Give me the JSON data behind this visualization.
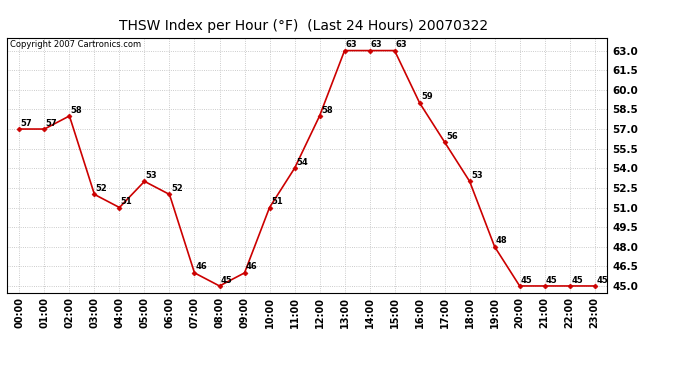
{
  "title": "THSW Index per Hour (°F)  (Last 24 Hours) 20070322",
  "copyright": "Copyright 2007 Cartronics.com",
  "hours": [
    "00:00",
    "01:00",
    "02:00",
    "03:00",
    "04:00",
    "05:00",
    "06:00",
    "07:00",
    "08:00",
    "09:00",
    "10:00",
    "11:00",
    "12:00",
    "13:00",
    "14:00",
    "15:00",
    "16:00",
    "17:00",
    "18:00",
    "19:00",
    "20:00",
    "21:00",
    "22:00",
    "23:00"
  ],
  "values": [
    57,
    57,
    58,
    52,
    51,
    53,
    52,
    46,
    45,
    46,
    51,
    54,
    58,
    63,
    63,
    63,
    59,
    56,
    53,
    48,
    45,
    45,
    45,
    45
  ],
  "line_color": "#cc0000",
  "marker_color": "#cc0000",
  "bg_color": "#ffffff",
  "plot_bg_color": "#ffffff",
  "grid_color": "#bbbbbb",
  "ylim_min": 45.0,
  "ylim_max": 63.0,
  "ytick_step": 1.5,
  "figwidth": 6.9,
  "figheight": 3.75,
  "dpi": 100
}
